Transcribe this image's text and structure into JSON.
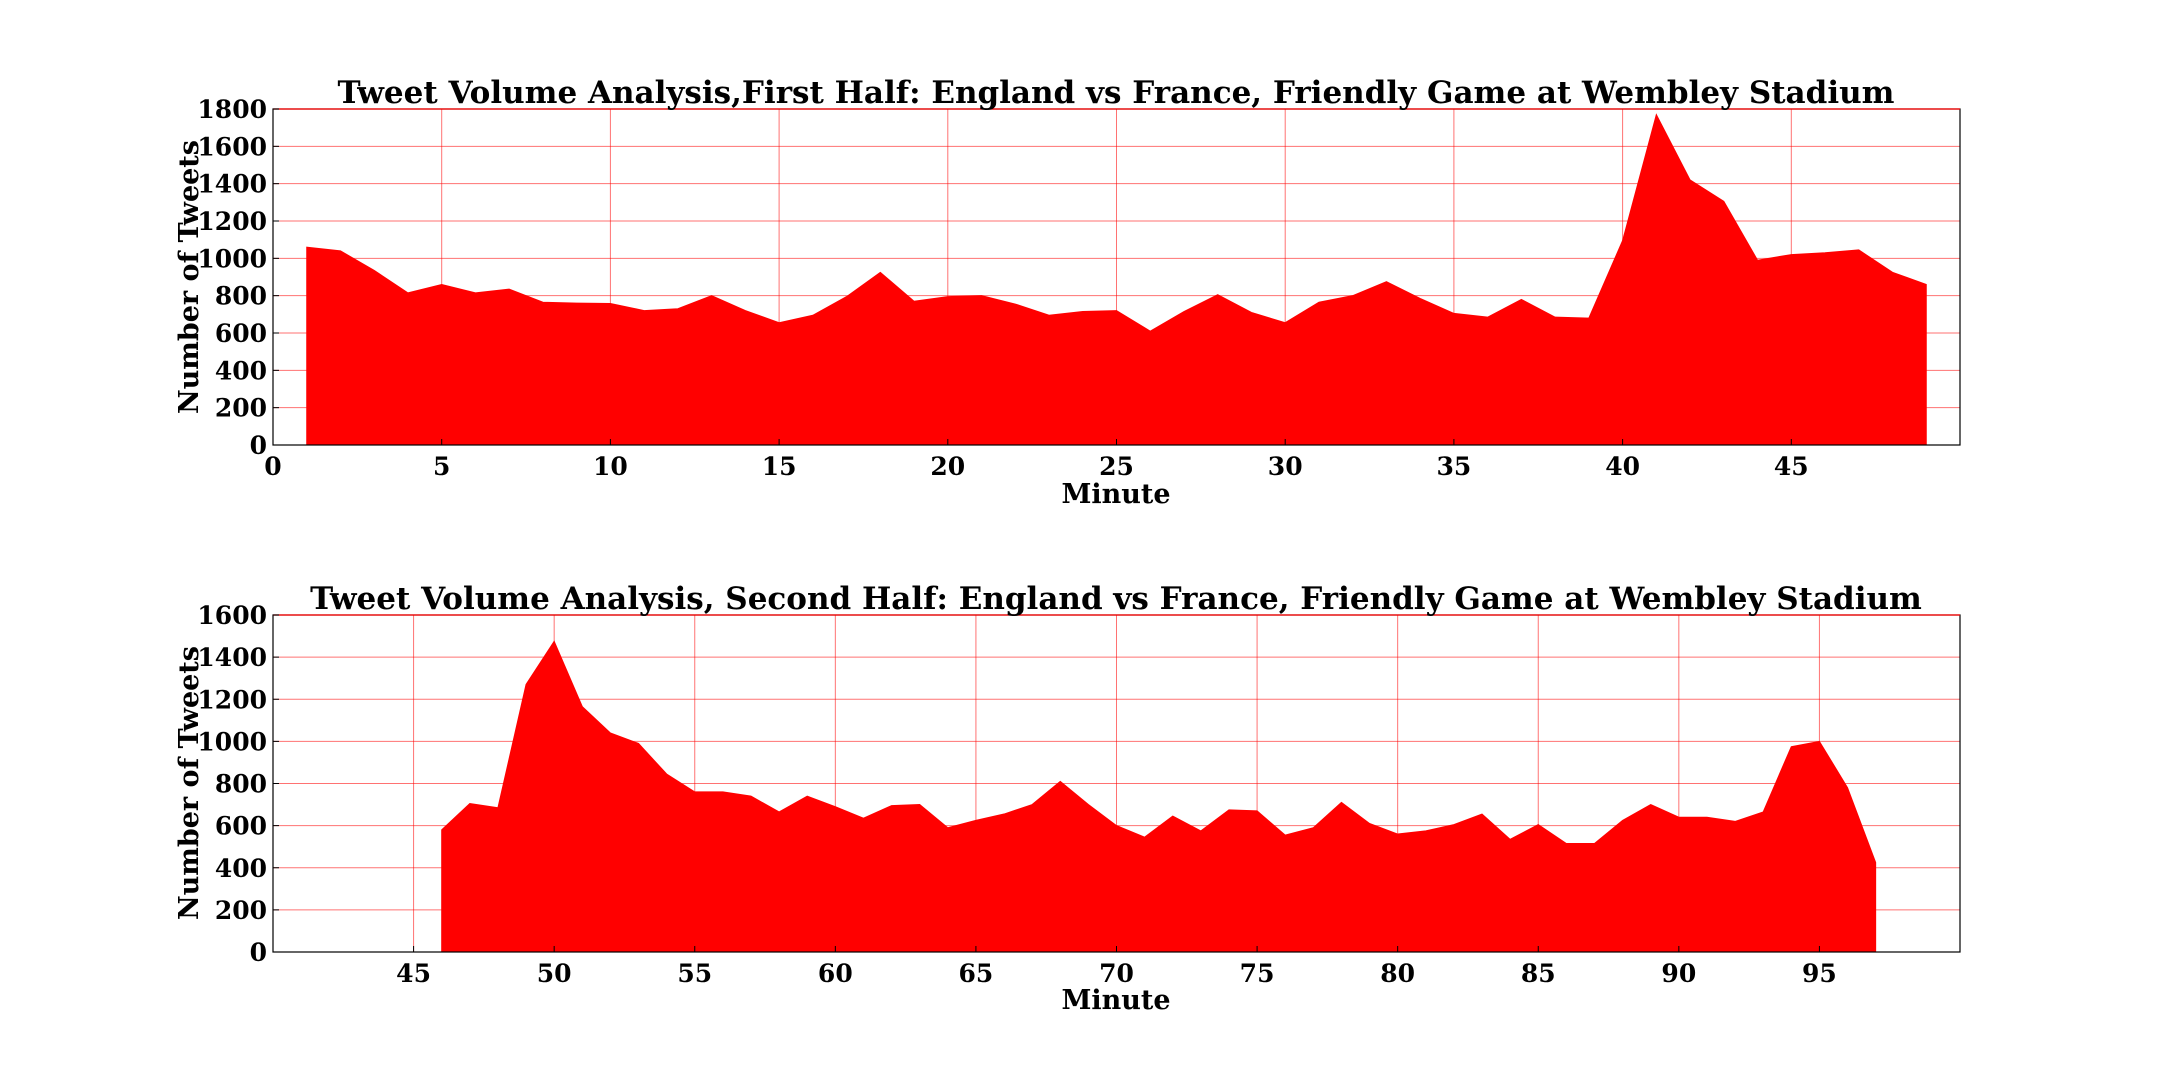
{
  "colors": {
    "fill": "#ff0000",
    "grid": "#ff0000",
    "axes": "#000000"
  },
  "chart_data": [
    {
      "type": "area",
      "title": "Tweet Volume Analysis,First Half: England vs France, Friendly Game at Wembley Stadium",
      "xlabel": "Minute",
      "ylabel": "Number of Tweets",
      "xlim": [
        0,
        50
      ],
      "ylim": [
        0,
        1800
      ],
      "xticks": [
        0,
        5,
        10,
        15,
        20,
        25,
        30,
        35,
        40,
        45
      ],
      "xtick_labels": [
        "0",
        "5",
        "10",
        "15",
        "20",
        "25",
        "30",
        "35",
        "40",
        "45"
      ],
      "yticks": [
        0,
        200,
        400,
        600,
        800,
        1000,
        1200,
        1400,
        1600,
        1800
      ],
      "ytick_labels": [
        "0",
        "200",
        "400",
        "600",
        "800",
        "1000",
        "1200",
        "1400",
        "1600",
        "1800"
      ],
      "grid": true,
      "x": [
        1,
        2,
        3,
        4,
        5,
        6,
        7,
        8,
        9,
        10,
        11,
        12,
        13,
        14,
        15,
        16,
        17,
        18,
        19,
        20,
        21,
        22,
        23,
        24,
        25,
        26,
        27,
        28,
        29,
        30,
        31,
        32,
        33,
        34,
        35,
        36,
        37,
        38,
        39,
        40,
        41,
        42,
        43,
        44,
        45,
        46,
        47,
        48,
        49
      ],
      "values": [
        1060,
        1040,
        935,
        815,
        860,
        815,
        835,
        765,
        760,
        758,
        720,
        730,
        800,
        720,
        655,
        695,
        795,
        925,
        770,
        795,
        800,
        755,
        695,
        715,
        720,
        610,
        715,
        805,
        710,
        655,
        765,
        800,
        875,
        785,
        705,
        685,
        780,
        685,
        680,
        1095,
        1770,
        1420,
        1305,
        990,
        1020,
        1030,
        1045,
        925,
        860
      ]
    },
    {
      "type": "area",
      "title": "Tweet Volume Analysis, Second Half: England vs France, Friendly Game at Wembley Stadium",
      "xlabel": "Minute",
      "ylabel": "Number of Tweets",
      "xlim": [
        40,
        100
      ],
      "ylim": [
        0,
        1600
      ],
      "xticks": [
        45,
        50,
        55,
        60,
        65,
        70,
        75,
        80,
        85,
        90,
        95
      ],
      "xtick_labels": [
        "45",
        "50",
        "55",
        "60",
        "65",
        "70",
        "75",
        "80",
        "85",
        "90",
        "95"
      ],
      "yticks": [
        0,
        200,
        400,
        600,
        800,
        1000,
        1200,
        1400,
        1600
      ],
      "ytick_labels": [
        "0",
        "200",
        "400",
        "600",
        "800",
        "1000",
        "1200",
        "1400",
        "1600"
      ],
      "grid": true,
      "x": [
        46,
        47,
        48,
        49,
        50,
        51,
        52,
        53,
        54,
        55,
        56,
        57,
        58,
        59,
        60,
        61,
        62,
        63,
        64,
        65,
        66,
        67,
        68,
        69,
        70,
        71,
        72,
        73,
        74,
        75,
        76,
        77,
        78,
        79,
        80,
        81,
        82,
        83,
        84,
        85,
        86,
        87,
        88,
        89,
        90,
        91,
        92,
        93,
        94,
        95,
        96,
        97
      ],
      "values": [
        580,
        705,
        685,
        1270,
        1475,
        1165,
        1040,
        990,
        845,
        760,
        760,
        740,
        665,
        740,
        690,
        635,
        695,
        700,
        590,
        625,
        655,
        700,
        810,
        700,
        600,
        545,
        645,
        575,
        675,
        670,
        555,
        590,
        710,
        610,
        560,
        575,
        605,
        655,
        535,
        605,
        515,
        515,
        625,
        700,
        640,
        640,
        620,
        665,
        975,
        1000,
        780,
        425
      ]
    }
  ]
}
